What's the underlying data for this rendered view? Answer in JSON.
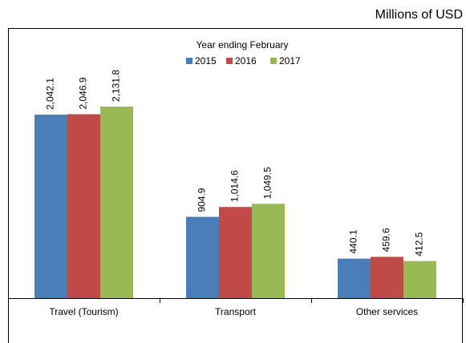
{
  "chart_data": {
    "type": "bar",
    "unit_label": "Millions of USD",
    "legend_title": "Year ending February",
    "categories": [
      "Travel (Tourism)",
      "Transport",
      "Other services"
    ],
    "series": [
      {
        "name": "2015",
        "color": "#4a7ebb",
        "values": [
          2042.1,
          904.9,
          440.1
        ],
        "value_labels": [
          "2,042.1",
          "904.9",
          "440.1"
        ]
      },
      {
        "name": "2016",
        "color": "#be4b48",
        "values": [
          2046.9,
          1014.6,
          459.6
        ],
        "value_labels": [
          "2,046.9",
          "1,014.6",
          "459.6"
        ]
      },
      {
        "name": "2017",
        "color": "#98b954",
        "values": [
          2131.8,
          1049.5,
          412.5
        ],
        "value_labels": [
          "2,131.8",
          "1,049.5",
          "412.5"
        ]
      }
    ],
    "legend": "top"
  }
}
